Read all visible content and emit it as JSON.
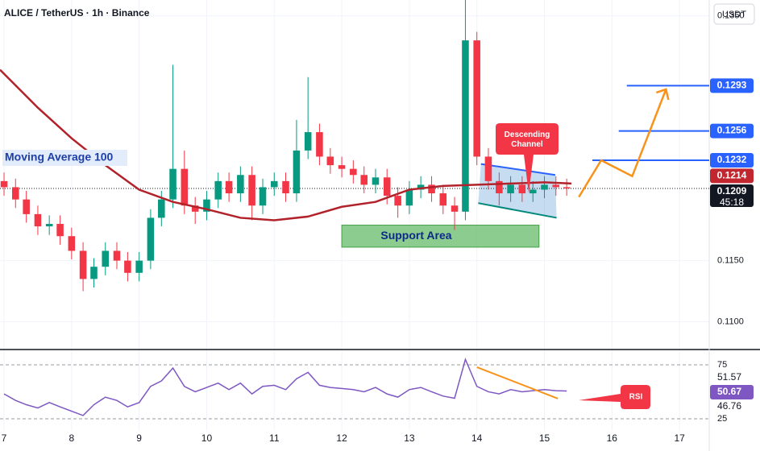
{
  "chart_data": {
    "type": "candlestick",
    "title": "ALICE / TetherUS · 1h · Binance",
    "currency": "USDT",
    "xlim": [
      6.94,
      17.44
    ],
    "xticks": [
      7,
      8,
      9,
      10,
      11,
      12,
      13,
      14,
      15,
      16,
      17
    ],
    "ylim": [
      0.1078,
      0.1363
    ],
    "yticks": [
      {
        "value": 0.135,
        "label": "0.1350"
      },
      {
        "value": 0.115,
        "label": "0.1150"
      },
      {
        "value": 0.11,
        "label": "0.1100"
      }
    ],
    "up_color": "#089981",
    "down_color": "#f23645",
    "x": [
      7,
      7.17,
      7.33,
      7.5,
      7.67,
      7.83,
      8,
      8.17,
      8.33,
      8.5,
      8.67,
      8.83,
      9,
      9.17,
      9.33,
      9.5,
      9.67,
      9.83,
      10,
      10.17,
      10.33,
      10.5,
      10.67,
      10.83,
      11,
      11.17,
      11.33,
      11.5,
      11.67,
      11.83,
      12,
      12.17,
      12.33,
      12.5,
      12.67,
      12.83,
      13,
      13.17,
      13.33,
      13.5,
      13.67,
      13.83,
      14,
      14.17,
      14.33,
      14.5,
      14.67,
      14.83,
      15,
      15.17,
      15.33
    ],
    "open": [
      0.1215,
      0.121,
      0.12,
      0.1188,
      0.1178,
      0.118,
      0.117,
      0.1158,
      0.1135,
      0.1145,
      0.1158,
      0.115,
      0.114,
      0.115,
      0.1185,
      0.12,
      0.1225,
      0.1195,
      0.119,
      0.12,
      0.1215,
      0.1205,
      0.122,
      0.1195,
      0.121,
      0.1215,
      0.1205,
      0.124,
      0.1255,
      0.1235,
      0.1228,
      0.1225,
      0.122,
      0.1212,
      0.1218,
      0.1203,
      0.1195,
      0.1208,
      0.1212,
      0.1205,
      0.1195,
      0.119,
      0.133,
      0.1235,
      0.1215,
      0.1205,
      0.1212,
      0.1205,
      0.1208,
      0.1212,
      0.121
    ],
    "high": [
      0.1222,
      0.1217,
      0.1207,
      0.1195,
      0.1187,
      0.1187,
      0.1177,
      0.1165,
      0.1152,
      0.1165,
      0.1165,
      0.1157,
      0.1157,
      0.1192,
      0.1207,
      0.131,
      0.124,
      0.1202,
      0.1207,
      0.1222,
      0.1222,
      0.1227,
      0.1227,
      0.1217,
      0.1222,
      0.1222,
      0.1265,
      0.13,
      0.1262,
      0.1242,
      0.1235,
      0.1232,
      0.1227,
      0.1225,
      0.1225,
      0.121,
      0.1215,
      0.1219,
      0.1219,
      0.1212,
      0.1202,
      0.137,
      0.1337,
      0.1242,
      0.1222,
      0.1219,
      0.1219,
      0.1215,
      0.1219,
      0.1219,
      0.1217
    ],
    "low": [
      0.1203,
      0.1193,
      0.1181,
      0.1171,
      0.1171,
      0.1163,
      0.1151,
      0.1125,
      0.1128,
      0.1138,
      0.1143,
      0.1133,
      0.1133,
      0.1143,
      0.1178,
      0.1193,
      0.1188,
      0.118,
      0.1183,
      0.1193,
      0.1198,
      0.1198,
      0.1183,
      0.1188,
      0.1203,
      0.1198,
      0.1198,
      0.1233,
      0.1228,
      0.1221,
      0.1218,
      0.1213,
      0.1205,
      0.1205,
      0.1196,
      0.1185,
      0.1188,
      0.1201,
      0.1198,
      0.1188,
      0.1175,
      0.1183,
      0.1228,
      0.1208,
      0.1195,
      0.1198,
      0.1198,
      0.1198,
      0.1201,
      0.1203,
      0.1203
    ],
    "close": [
      0.121,
      0.12,
      0.1188,
      0.1178,
      0.118,
      0.117,
      0.1158,
      0.1135,
      0.1145,
      0.1158,
      0.115,
      0.114,
      0.115,
      0.1185,
      0.12,
      0.1225,
      0.1195,
      0.119,
      0.12,
      0.1215,
      0.1205,
      0.122,
      0.1195,
      0.121,
      0.1215,
      0.1205,
      0.124,
      0.1255,
      0.1235,
      0.1228,
      0.1225,
      0.122,
      0.1212,
      0.1218,
      0.1203,
      0.1195,
      0.1208,
      0.1212,
      0.1205,
      0.1195,
      0.119,
      0.133,
      0.1235,
      0.1215,
      0.1205,
      0.1212,
      0.1205,
      0.1208,
      0.1212,
      0.121,
      0.1209
    ],
    "moving_average": {
      "name": "Moving Average 100",
      "color": "#b2222a",
      "x": [
        6.94,
        7.5,
        8,
        8.5,
        9,
        9.5,
        10,
        10.5,
        11,
        11.5,
        12,
        12.5,
        13,
        13.5,
        14,
        14.5,
        15,
        15.4
      ],
      "values": [
        0.1306,
        0.1275,
        0.125,
        0.1228,
        0.1208,
        0.1198,
        0.1192,
        0.1185,
        0.1183,
        0.1186,
        0.1194,
        0.1198,
        0.1208,
        0.1211,
        0.1212,
        0.1213,
        0.1214,
        0.1213
      ]
    },
    "levels": [
      {
        "value": 0.1293,
        "from": 16.22,
        "color": "#2962ff"
      },
      {
        "value": 0.1256,
        "from": 16.1,
        "color": "#2962ff"
      },
      {
        "value": 0.1232,
        "from": 15.71,
        "color": "#2962ff"
      }
    ],
    "price_tags": [
      {
        "value": 0.1214,
        "color": "#c2262e"
      },
      {
        "value": 0.1209,
        "color": "#131722"
      }
    ],
    "current_price": 0.1209,
    "countdown": "45:18",
    "support": {
      "label": "Support Area",
      "x": [
        12.0,
        14.92
      ],
      "y": [
        0.1179,
        0.1161
      ]
    },
    "channel": {
      "label": "Descending Channel",
      "upper": {
        "x": [
          14.06,
          15.16
        ],
        "y": [
          0.1229,
          0.122
        ]
      },
      "lower": {
        "x": [
          14.02,
          15.18
        ],
        "y": [
          0.1197,
          0.1185
        ]
      }
    },
    "projection": {
      "color": "#f7931a",
      "x": [
        15.51,
        15.84,
        16.3,
        16.8
      ],
      "values": [
        0.1202,
        0.1232,
        0.1219,
        0.129
      ]
    },
    "rsi": {
      "label": "RSI",
      "color": "#7e57c2",
      "ylim": [
        17.5,
        88.4
      ],
      "yticks": [
        75,
        25
      ],
      "values": [
        48,
        42,
        38,
        35,
        40,
        36,
        32,
        28,
        38,
        45,
        42,
        36,
        40,
        55,
        60,
        72,
        55,
        50,
        54,
        58,
        52,
        58,
        48,
        55,
        56,
        52,
        62,
        68,
        56,
        54,
        53,
        52,
        50,
        54,
        48,
        45,
        52,
        54,
        50,
        46,
        44,
        80,
        55,
        50,
        48,
        52,
        50,
        51,
        52,
        51,
        50.67
      ],
      "tags": [
        {
          "value": 51.57,
          "color": "#ffffff"
        },
        {
          "value": 50.67,
          "color": "#7e57c2"
        },
        {
          "value": 46.76,
          "color": "#ffffff"
        }
      ],
      "trend": {
        "x": [
          14.0,
          15.2
        ],
        "values": [
          72.8,
          43.7
        ]
      }
    }
  }
}
